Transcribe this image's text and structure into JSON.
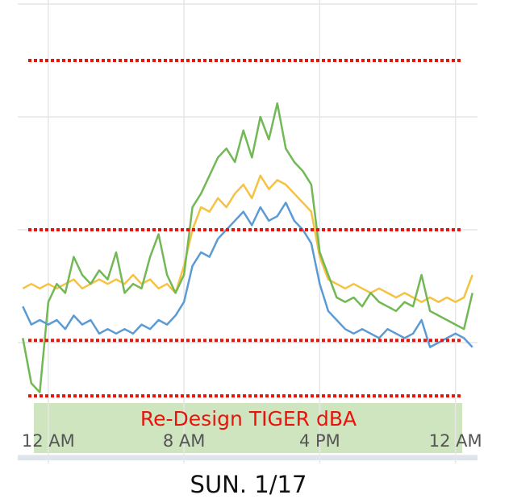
{
  "chart_data": {
    "type": "line",
    "annotation": "Re-Design TIGER dBA",
    "xlabel": "SUN. 1/17",
    "xlim": [
      -1.8,
      25.3
    ],
    "ylim": [
      0,
      100
    ],
    "xticks": [
      {
        "value": 0,
        "label": "12 AM"
      },
      {
        "value": 8,
        "label": "8 AM"
      },
      {
        "value": 16,
        "label": "4 PM"
      },
      {
        "value": 24,
        "label": "12 AM"
      }
    ],
    "y_gridlines": [
      0,
      25,
      50,
      75,
      100
    ],
    "reference_lines": [
      87.5,
      50,
      25.5,
      13.2
    ],
    "reference_color": "#e8140c",
    "grid": true,
    "x": [
      -1.5,
      -1,
      -0.5,
      0,
      0.5,
      1,
      1.5,
      2,
      2.5,
      3,
      3.5,
      4,
      4.5,
      5,
      5.5,
      6,
      6.5,
      7,
      7.5,
      8,
      8.5,
      9,
      9.5,
      10,
      10.5,
      11,
      11.5,
      12,
      12.5,
      13,
      13.5,
      14,
      14.5,
      15,
      15.5,
      16,
      16.5,
      17,
      17.5,
      18,
      18.5,
      19,
      19.5,
      20,
      20.5,
      21,
      21.5,
      22,
      22.5,
      23,
      23.5,
      24,
      24.5,
      25
    ],
    "series": [
      {
        "color": "#f5c242",
        "values": [
          37,
          38,
          37,
          38,
          37,
          38,
          39,
          37,
          38,
          39,
          38,
          39,
          38,
          40,
          38,
          39,
          37,
          38,
          36,
          42,
          50,
          55,
          54,
          57,
          55,
          58,
          60,
          57,
          62,
          59,
          61,
          60,
          58,
          56,
          54,
          44,
          39,
          38,
          37,
          38,
          37,
          36,
          37,
          36,
          35,
          36,
          35,
          34,
          35,
          34,
          35,
          34,
          35,
          40
        ]
      },
      {
        "color": "#72b855",
        "values": [
          26,
          16,
          14,
          34,
          38,
          36,
          44,
          40,
          38,
          41,
          39,
          45,
          36,
          38,
          37,
          44,
          49,
          40,
          36,
          40,
          55,
          58,
          62,
          66,
          68,
          65,
          72,
          66,
          75,
          70,
          78,
          68,
          65,
          63,
          60,
          45,
          40,
          35,
          34,
          35,
          33,
          36,
          34,
          33,
          32,
          34,
          33,
          40,
          32,
          31,
          30,
          29,
          28,
          36
        ]
      },
      {
        "color": "#5b9bd5",
        "values": [
          33,
          29,
          30,
          29,
          30,
          28,
          31,
          29,
          30,
          27,
          28,
          27,
          28,
          27,
          29,
          28,
          30,
          29,
          31,
          34,
          42,
          45,
          44,
          48,
          50,
          52,
          54,
          51,
          55,
          52,
          53,
          56,
          52,
          50,
          47,
          38,
          32,
          30,
          28,
          27,
          28,
          27,
          26,
          28,
          27,
          26,
          27,
          30,
          24,
          25,
          26,
          27,
          26,
          24
        ]
      }
    ]
  }
}
